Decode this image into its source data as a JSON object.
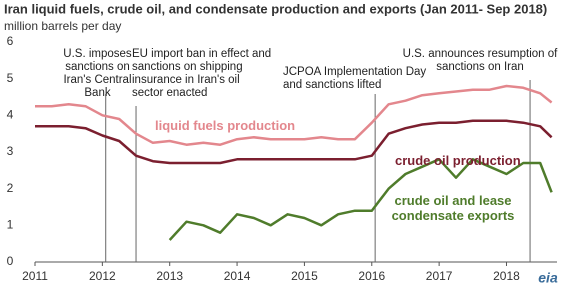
{
  "chart_data": {
    "type": "line",
    "title": "Iran liquid fuels, crude oil, and condensate production and exports (Jan 2011- Sep 2018)",
    "subtitle": "million barrels per day",
    "x": [
      2011,
      2011.25,
      2011.5,
      2011.75,
      2012,
      2012.25,
      2012.5,
      2012.75,
      2013,
      2013.25,
      2013.5,
      2013.75,
      2014,
      2014.25,
      2014.5,
      2014.75,
      2015,
      2015.25,
      2015.5,
      2015.75,
      2016,
      2016.25,
      2016.5,
      2016.75,
      2017,
      2017.25,
      2017.5,
      2017.75,
      2018,
      2018.25,
      2018.5,
      2018.67
    ],
    "series": [
      {
        "name": "liquid fuels production",
        "color": "#e3878d",
        "values": [
          4.25,
          4.25,
          4.3,
          4.25,
          4.0,
          3.9,
          3.5,
          3.25,
          3.3,
          3.2,
          3.25,
          3.2,
          3.35,
          3.4,
          3.35,
          3.35,
          3.35,
          3.4,
          3.35,
          3.35,
          3.8,
          4.3,
          4.4,
          4.55,
          4.6,
          4.65,
          4.7,
          4.7,
          4.8,
          4.75,
          4.6,
          4.35
        ]
      },
      {
        "name": "crude oil production",
        "color": "#7b1f2f",
        "values": [
          3.7,
          3.7,
          3.7,
          3.65,
          3.45,
          3.3,
          2.9,
          2.75,
          2.7,
          2.7,
          2.7,
          2.7,
          2.8,
          2.8,
          2.8,
          2.8,
          2.8,
          2.8,
          2.8,
          2.8,
          2.9,
          3.5,
          3.65,
          3.75,
          3.8,
          3.8,
          3.85,
          3.85,
          3.85,
          3.8,
          3.7,
          3.4
        ]
      },
      {
        "name": "crude oil and lease condensate exports",
        "color": "#4f7c2b",
        "values": [
          null,
          null,
          null,
          null,
          null,
          null,
          null,
          null,
          0.6,
          1.1,
          1.0,
          0.8,
          1.3,
          1.2,
          1.0,
          1.3,
          1.2,
          1.0,
          1.3,
          1.4,
          1.4,
          2.0,
          2.4,
          2.6,
          2.8,
          2.3,
          2.8,
          2.6,
          2.4,
          2.7,
          2.7,
          1.9
        ]
      }
    ],
    "xlim": [
      2011,
      2018.75
    ],
    "xticks": [
      2011,
      2012,
      2013,
      2014,
      2015,
      2016,
      2017,
      2018
    ],
    "ylim": [
      0,
      6
    ],
    "yticks": [
      0,
      1,
      2,
      3,
      4,
      5,
      6
    ],
    "annotations": [
      {
        "x": 2012.05,
        "text": "U.S. imposes sanctions on Iran's Central Bank"
      },
      {
        "x": 2012.5,
        "text": "EU import ban in effect and sanctions on shipping insurance in Iran's oil sector enacted"
      },
      {
        "x": 2016.05,
        "text": "JCPOA Implementation Day and  sanctions lifted"
      },
      {
        "x": 2018.35,
        "text": "U.S. announces resumption of sanctions on Iran"
      }
    ],
    "source_logo": "eia"
  }
}
